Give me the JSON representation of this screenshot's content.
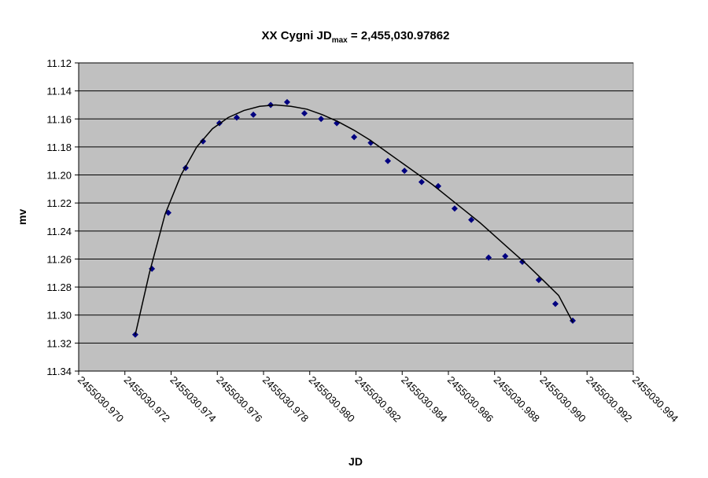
{
  "chart_data": {
    "type": "scatter",
    "title": "XX Cygni JD",
    "title_subscript": "max",
    "title_suffix": " = 2,455,030.97862",
    "xlabel": "JD",
    "ylabel": "mv",
    "xlim": [
      2455030.97,
      2455030.994
    ],
    "xticks": [
      {
        "value": 2455030.97,
        "label": "2455030.970"
      },
      2455030.972,
      2455030.974,
      2455030.976,
      2455030.978,
      {
        "value": 2455030.98,
        "label": "2455030.980"
      },
      2455030.982,
      2455030.984,
      2455030.986,
      2455030.988,
      {
        "value": 2455030.99,
        "label": "2455030.990"
      },
      2455030.992,
      2455030.994
    ],
    "ylim": [
      11.34,
      11.12
    ],
    "yticks": [
      11.12,
      11.14,
      11.16,
      11.18,
      {
        "value": 11.2,
        "label": "11.20"
      },
      11.22,
      11.24,
      11.26,
      11.28,
      {
        "value": 11.3,
        "label": "11.30"
      },
      11.32,
      11.34
    ],
    "grid": true,
    "plot_background": "#c0c0c0",
    "series": [
      {
        "color": "#000080",
        "marker": "diamond",
        "x": [
          2455030.97245,
          2455030.97317,
          2455030.97388,
          2455030.97463,
          2455030.97538,
          2455030.97609,
          2455030.97684,
          2455030.97756,
          2455030.97831,
          2455030.97902,
          2455030.97977,
          2455030.98049,
          2455030.98117,
          2455030.98192,
          2455030.98264,
          2455030.98338,
          2455030.9841,
          2455030.98484,
          2455030.98556,
          2455030.98627,
          2455030.98699,
          2455030.98774,
          2455030.98846,
          2455030.9892,
          2455030.98991,
          2455030.99063,
          2455030.99138
        ],
        "values": [
          11.314,
          11.267,
          11.227,
          11.195,
          11.176,
          11.163,
          11.159,
          11.157,
          11.15,
          11.148,
          11.156,
          11.16,
          11.163,
          11.173,
          11.177,
          11.19,
          11.197,
          11.205,
          11.208,
          11.224,
          11.232,
          11.259,
          11.258,
          11.262,
          11.275,
          11.292,
          11.304
        ]
      },
      {
        "color": "#000000",
        "marker": "line",
        "x": [
          2455030.97245,
          2455030.97306,
          2455030.97374,
          2455030.97443,
          2455030.97511,
          2455030.97579,
          2455030.97647,
          2455030.97715,
          2455030.97783,
          2455030.97851,
          2455030.97919,
          2455030.97987,
          2455030.98055,
          2455030.98123,
          2455030.98191,
          2455030.9826,
          2455030.98328,
          2455030.98396,
          2455030.98464,
          2455030.98532,
          2455030.986,
          2455030.98668,
          2455030.98736,
          2455030.98804,
          2455030.98872,
          2455030.9894,
          2455030.99009,
          2455030.99077,
          2455030.99138
        ],
        "values": [
          11.314,
          11.27,
          11.228,
          11.2,
          11.18,
          11.167,
          11.159,
          11.154,
          11.151,
          11.15,
          11.151,
          11.153,
          11.157,
          11.162,
          11.168,
          11.175,
          11.183,
          11.191,
          11.199,
          11.207,
          11.216,
          11.225,
          11.234,
          11.244,
          11.254,
          11.264,
          11.275,
          11.286,
          11.305
        ]
      }
    ]
  }
}
